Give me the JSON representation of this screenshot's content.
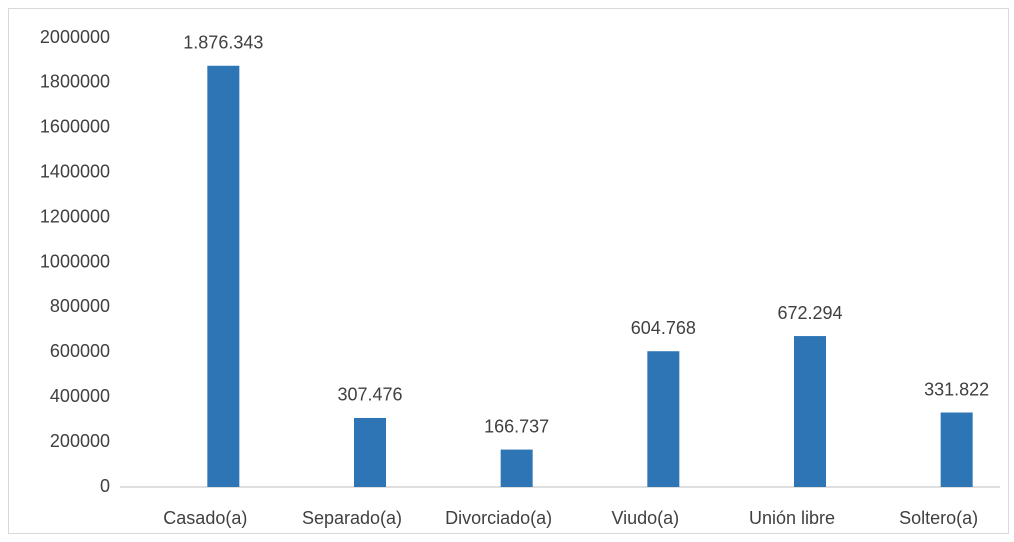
{
  "chart_data": {
    "type": "bar",
    "categories": [
      "Casado(a)",
      "Separado(a)",
      "Divorciado(a)",
      "Viudo(a)",
      "Unión libre",
      "Soltero(a)"
    ],
    "values": [
      1876343,
      307476,
      166737,
      604768,
      672294,
      331822
    ],
    "value_labels": [
      "1.876.343",
      "307.476",
      "166.737",
      "604.768",
      "672.294",
      "331.822"
    ],
    "color": "#2e75b6",
    "ylim": [
      0,
      2000000
    ],
    "yticks": [
      0,
      200000,
      400000,
      600000,
      800000,
      1000000,
      1200000,
      1400000,
      1600000,
      1800000,
      2000000
    ],
    "grid": false
  }
}
